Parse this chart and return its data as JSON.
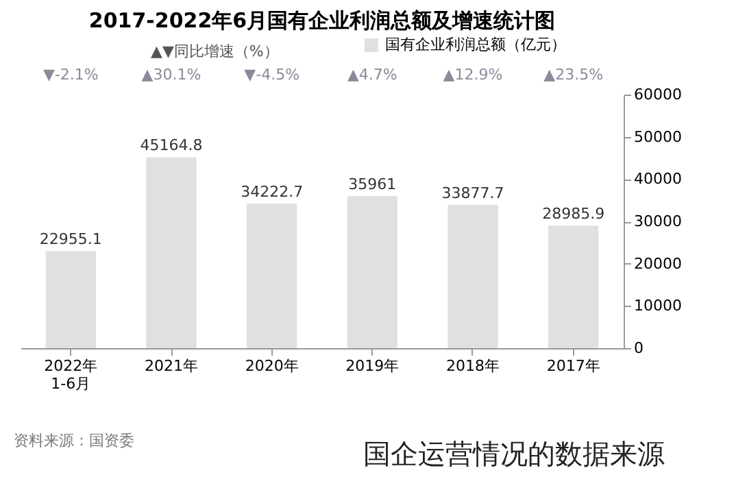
{
  "chart_data": {
    "type": "bar",
    "title": "2017-2022年6月国有企业利润总额及增速统计图",
    "categories": [
      "2022年\n1-6月",
      "2021年",
      "2020年",
      "2019年",
      "2018年",
      "2017年"
    ],
    "series": [
      {
        "name": "国有企业利润总额（亿元）",
        "color": "#e0e0e0",
        "values": [
          22955.1,
          45164.8,
          34222.7,
          35961,
          33877.7,
          28985.9
        ]
      }
    ],
    "ylim": [
      0,
      60000
    ],
    "yticks": [
      0,
      10000,
      20000,
      30000,
      40000,
      50000,
      60000
    ],
    "data_labels": true,
    "legend": "top",
    "grid": false,
    "annotations": [
      "▼-2.1%",
      "▲30.1%",
      "▼-4.5%",
      "▲4.7%",
      "▲12.9%",
      "▲23.5%",
      "▲▼同比增速（%）",
      "资料来源：国资委",
      "国企运营情况的数据来源"
    ]
  }
}
